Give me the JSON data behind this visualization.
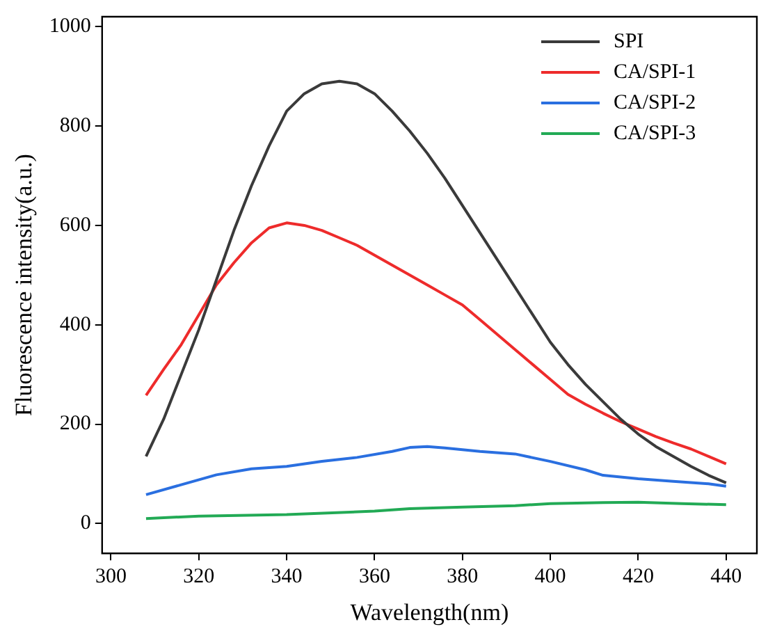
{
  "chart_data": {
    "type": "line",
    "xlabel": "Wavelength(nm)",
    "ylabel": "Fluorescence intensity(a.u.)",
    "xlim": [
      298,
      447
    ],
    "ylim": [
      -60,
      1020
    ],
    "xticks": [
      300,
      320,
      340,
      360,
      380,
      400,
      420,
      440
    ],
    "yticks": [
      0,
      200,
      400,
      600,
      800,
      1000
    ],
    "grid": false,
    "legend": "top right",
    "marker": "none",
    "line_style": "solid",
    "series": [
      {
        "name": "SPI",
        "color": "#3a3a3a",
        "x": [
          308,
          312,
          316,
          320,
          324,
          328,
          332,
          336,
          340,
          344,
          348,
          352,
          356,
          360,
          364,
          368,
          372,
          376,
          380,
          384,
          388,
          392,
          396,
          400,
          404,
          408,
          412,
          416,
          420,
          424,
          428,
          432,
          436,
          440
        ],
        "values": [
          135,
          210,
          300,
          390,
          490,
          590,
          680,
          760,
          830,
          865,
          885,
          890,
          885,
          865,
          830,
          790,
          745,
          695,
          640,
          585,
          530,
          475,
          420,
          365,
          320,
          280,
          245,
          210,
          180,
          155,
          135,
          115,
          97,
          82
        ]
      },
      {
        "name": "CA/SPI-1",
        "color": "#ee2b2b",
        "x": [
          308,
          312,
          316,
          320,
          324,
          328,
          332,
          336,
          340,
          344,
          348,
          352,
          356,
          360,
          364,
          368,
          372,
          376,
          380,
          384,
          388,
          392,
          396,
          400,
          404,
          408,
          412,
          416,
          420,
          424,
          428,
          432,
          436,
          440
        ],
        "values": [
          258,
          310,
          360,
          420,
          480,
          525,
          565,
          595,
          605,
          600,
          590,
          575,
          560,
          540,
          520,
          500,
          480,
          460,
          440,
          410,
          380,
          350,
          320,
          290,
          260,
          240,
          222,
          205,
          190,
          175,
          162,
          150,
          135,
          120
        ]
      },
      {
        "name": "CA/SPI-2",
        "color": "#2a6fe0",
        "x": [
          308,
          316,
          324,
          332,
          340,
          348,
          356,
          364,
          368,
          372,
          376,
          384,
          392,
          400,
          408,
          412,
          420,
          428,
          436,
          440
        ],
        "values": [
          58,
          78,
          98,
          110,
          115,
          125,
          133,
          145,
          153,
          155,
          152,
          145,
          140,
          125,
          108,
          97,
          90,
          85,
          80,
          75
        ]
      },
      {
        "name": "CA/SPI-3",
        "color": "#22aa55",
        "x": [
          308,
          320,
          340,
          360,
          368,
          380,
          392,
          400,
          412,
          420,
          430,
          440
        ],
        "values": [
          10,
          15,
          18,
          25,
          30,
          33,
          36,
          40,
          42,
          43,
          40,
          38
        ]
      }
    ]
  }
}
